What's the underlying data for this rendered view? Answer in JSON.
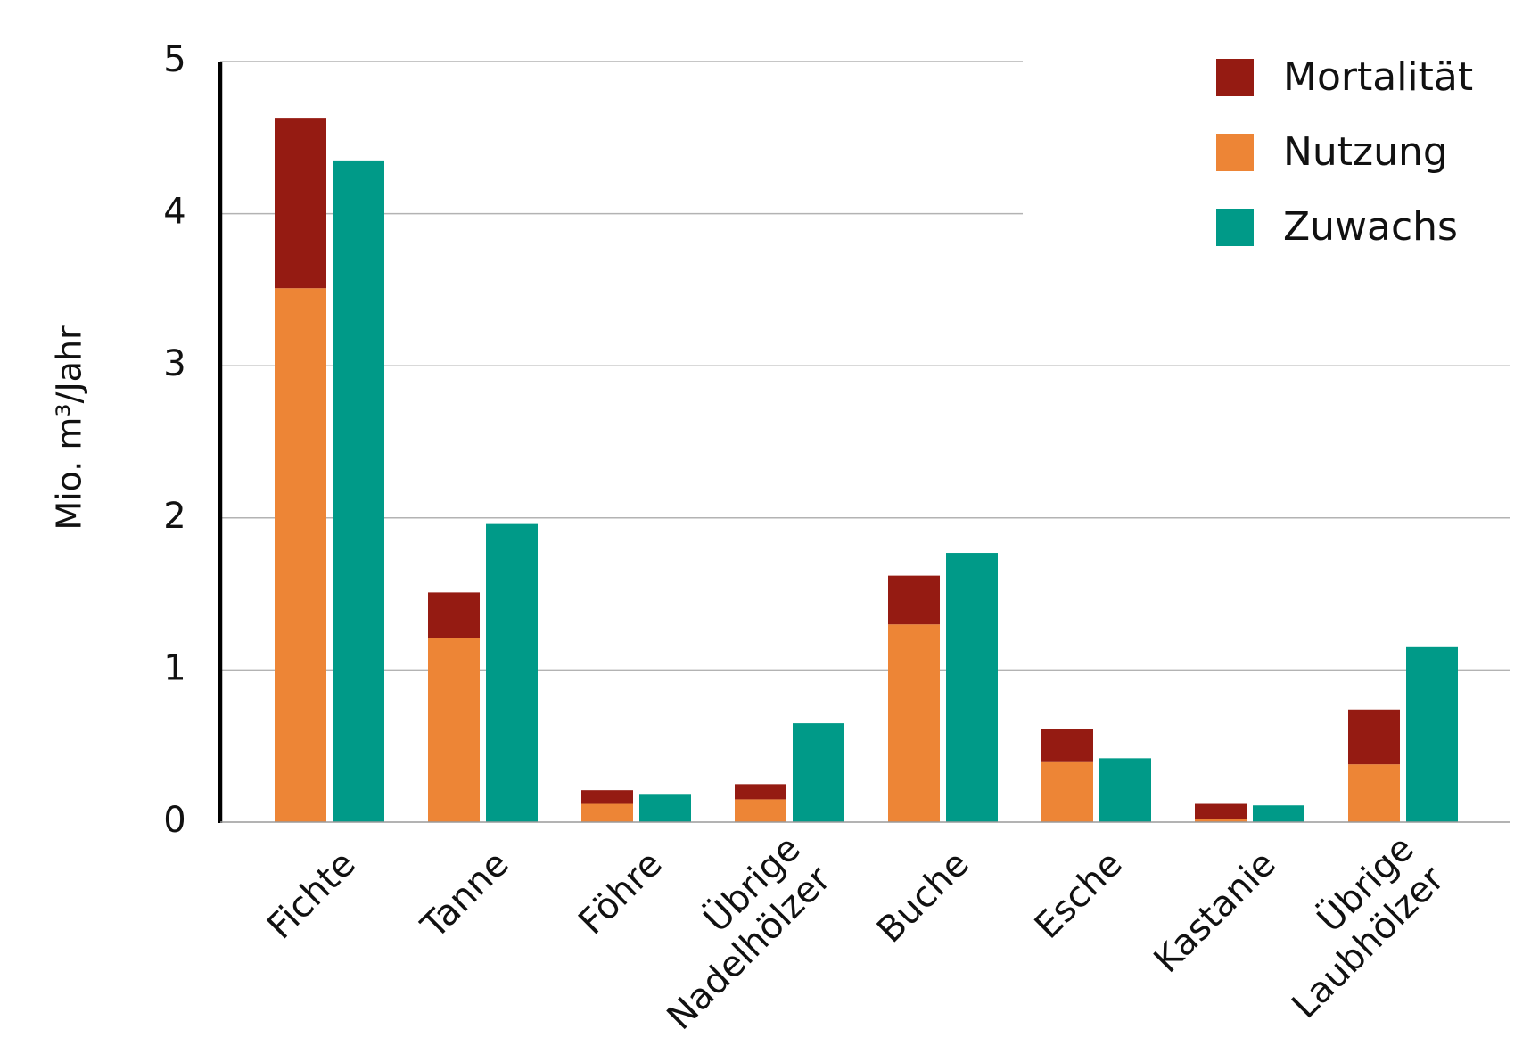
{
  "chart_data": {
    "type": "bar",
    "ylabel": "Mio. m³/Jahr",
    "ylim": [
      0,
      5
    ],
    "yticks": [
      0,
      1,
      2,
      3,
      4,
      5
    ],
    "categories": [
      [
        "Fichte"
      ],
      [
        "Tanne"
      ],
      [
        "Föhre"
      ],
      [
        "Übrige",
        "Nadelhölzer"
      ],
      [
        "Buche"
      ],
      [
        "Esche"
      ],
      [
        "Kastanie"
      ],
      [
        "Übrige",
        "Laubhölzer"
      ]
    ],
    "series": [
      {
        "name": "Nutzung",
        "color": "#ED8536",
        "stack": "use",
        "values": [
          3.51,
          1.21,
          0.12,
          0.15,
          1.3,
          0.4,
          0.02,
          0.38
        ]
      },
      {
        "name": "Mortalität",
        "color": "#951B12",
        "stack": "use",
        "values": [
          1.12,
          0.3,
          0.09,
          0.1,
          0.32,
          0.21,
          0.1,
          0.36
        ]
      },
      {
        "name": "Zuwachs",
        "color": "#009A88",
        "stack": "growth",
        "values": [
          4.35,
          1.96,
          0.18,
          0.65,
          1.77,
          0.42,
          0.11,
          1.15
        ]
      }
    ],
    "legend": {
      "position": "top-right",
      "order": [
        "Mortalität",
        "Nutzung",
        "Zuwachs"
      ]
    },
    "grid": true
  }
}
